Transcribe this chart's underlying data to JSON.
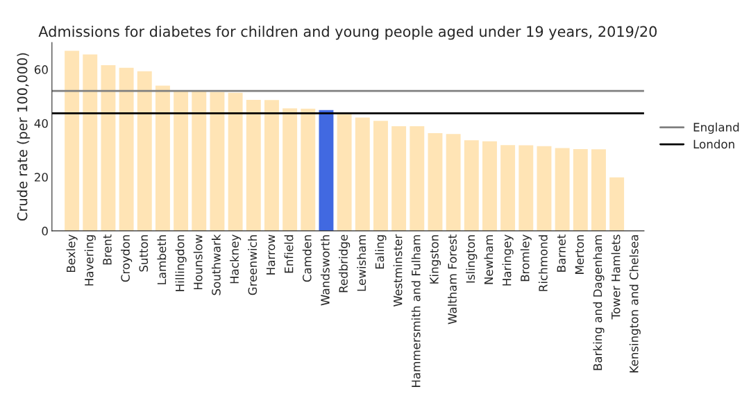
{
  "chart_data": {
    "type": "bar",
    "title": "Admissions for diabetes for children and young people aged under 19 years, 2019/20",
    "ylabel": "Crude rate (per 100,000)",
    "categories": [
      "Bexley",
      "Havering",
      "Brent",
      "Croydon",
      "Sutton",
      "Lambeth",
      "Hillingdon",
      "Hounslow",
      "Southwark",
      "Hackney",
      "Greenwich",
      "Harrow",
      "Enfield",
      "Camden",
      "Wandsworth",
      "Redbridge",
      "Lewisham",
      "Ealing",
      "Westminster",
      "Hammersmith and Fulham",
      "Kingston",
      "Waltham Forest",
      "Islington",
      "Newham",
      "Haringey",
      "Bromley",
      "Richmond",
      "Barnet",
      "Merton",
      "Barking and Dagenham",
      "Tower Hamlets",
      "Kensington and Chelsea"
    ],
    "values": [
      66.9,
      65.6,
      61.6,
      60.6,
      59.3,
      54.0,
      51.9,
      51.8,
      51.6,
      51.3,
      48.7,
      48.6,
      45.5,
      45.4,
      44.9,
      43.4,
      42.1,
      40.9,
      38.9,
      38.9,
      36.3,
      36.0,
      33.7,
      33.3,
      31.9,
      31.8,
      31.5,
      30.8,
      30.4,
      30.3,
      19.9,
      null
    ],
    "colors": [
      "#ffe4b5",
      "#ffe4b5",
      "#ffe4b5",
      "#ffe4b5",
      "#ffe4b5",
      "#ffe4b5",
      "#ffe4b5",
      "#ffe4b5",
      "#ffe4b5",
      "#ffe4b5",
      "#ffe4b5",
      "#ffe4b5",
      "#ffe4b5",
      "#ffe4b5",
      "#4169e1",
      "#ffe4b5",
      "#ffe4b5",
      "#ffe4b5",
      "#ffe4b5",
      "#ffe4b5",
      "#ffe4b5",
      "#ffe4b5",
      "#ffe4b5",
      "#ffe4b5",
      "#ffe4b5",
      "#ffe4b5",
      "#ffe4b5",
      "#ffe4b5",
      "#ffe4b5",
      "#ffe4b5",
      "#ffe4b5",
      "#ffe4b5"
    ],
    "ylim": [
      0,
      70
    ],
    "yticks": [
      0,
      20,
      40,
      60
    ],
    "ref_lines": [
      {
        "axis": "y",
        "value": 52.0,
        "label": "England",
        "color": "#808080"
      },
      {
        "axis": "y",
        "value": 43.7,
        "label": "London",
        "color": "#000000"
      }
    ],
    "legend": "right",
    "grid": false
  }
}
